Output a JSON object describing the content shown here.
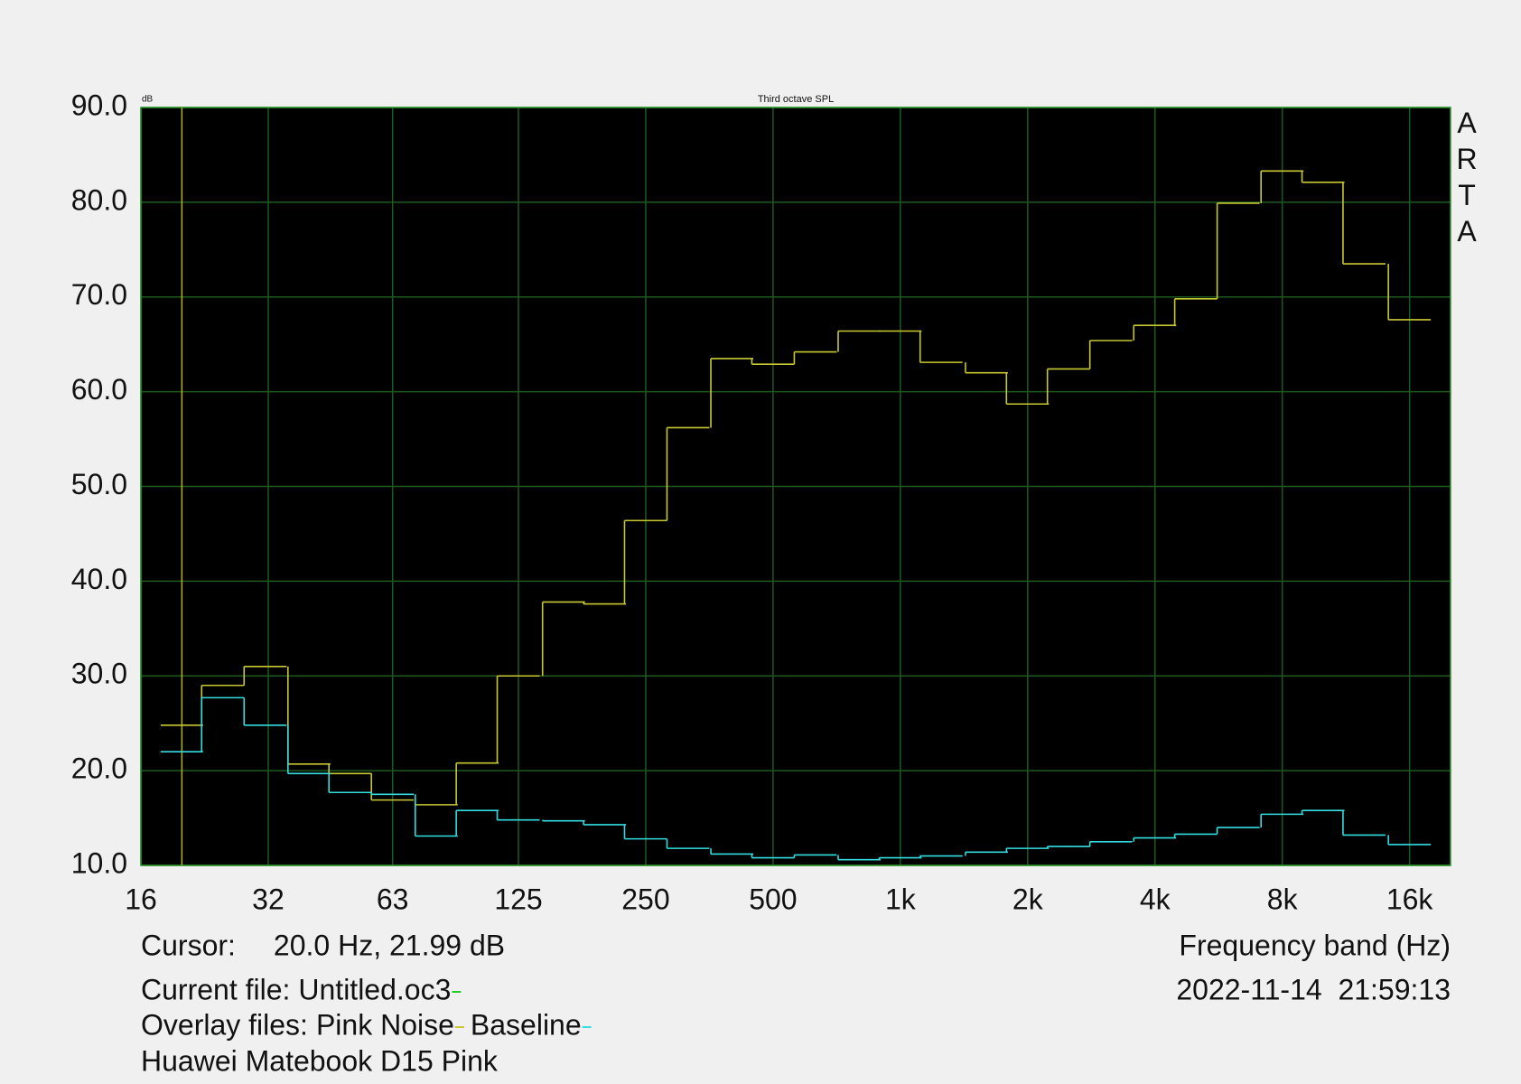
{
  "chart_data": {
    "type": "step",
    "title": "Third octave SPL",
    "y_unit": "dB",
    "watermark": "ARTA",
    "xlabel": "Frequency band (Hz)",
    "log_x": true,
    "grid": true,
    "background": "#000000",
    "grid_color": "#1e5a1e",
    "x": [
      20,
      25,
      31.5,
      40,
      50,
      63,
      80,
      100,
      125,
      160,
      200,
      250,
      315,
      400,
      500,
      630,
      800,
      1000,
      1250,
      1600,
      2000,
      2500,
      3150,
      4000,
      5000,
      6300,
      8000,
      10000,
      12500,
      16000
    ],
    "series": [
      {
        "name": "Pink Noise",
        "color": "#c8c832",
        "values": [
          24.8,
          29.0,
          31.0,
          20.7,
          19.7,
          16.9,
          16.4,
          20.8,
          30.0,
          37.8,
          37.6,
          46.4,
          56.2,
          63.5,
          62.9,
          64.2,
          66.4,
          66.4,
          63.1,
          62.0,
          58.7,
          62.4,
          65.4,
          67.0,
          69.8,
          79.9,
          83.3,
          82.1,
          73.5,
          67.6
        ]
      },
      {
        "name": "Baseline",
        "color": "#33dde0",
        "values": [
          22.0,
          27.7,
          24.8,
          19.7,
          17.7,
          17.5,
          13.1,
          15.8,
          14.8,
          14.7,
          14.3,
          12.8,
          11.8,
          11.2,
          10.8,
          11.1,
          10.6,
          10.8,
          11.0,
          11.4,
          11.8,
          12.0,
          12.5,
          12.9,
          13.3,
          14.0,
          15.4,
          15.8,
          13.2,
          12.2
        ]
      }
    ],
    "xlim": [
      16,
      20000
    ],
    "ylim": [
      10,
      90
    ],
    "xticks": [
      16,
      32,
      63,
      125,
      250,
      500,
      {
        "value": 1000,
        "label": "1k"
      },
      {
        "value": 2000,
        "label": "2k"
      },
      {
        "value": 4000,
        "label": "4k"
      },
      {
        "value": 8000,
        "label": "8k"
      },
      {
        "value": 16000,
        "label": "16k"
      }
    ],
    "yticks": [
      {
        "value": 10,
        "label": "10.0"
      },
      {
        "value": 20,
        "label": "20.0"
      },
      {
        "value": 30,
        "label": "30.0"
      },
      {
        "value": 40,
        "label": "40.0"
      },
      {
        "value": 50,
        "label": "50.0"
      },
      {
        "value": 60,
        "label": "60.0"
      },
      {
        "value": 70,
        "label": "70.0"
      },
      {
        "value": 80,
        "label": "80.0"
      },
      {
        "value": 90,
        "label": "90.0"
      }
    ],
    "cursor": {
      "x": 20,
      "color": "#b4b41e",
      "label": "Cursor:",
      "readout": "20.0 Hz, 21.99 dB"
    },
    "current_file": {
      "label": "Current file:",
      "name": "Untitled.oc3",
      "color": "#22cc22"
    },
    "overlay_label": "Overlay files:",
    "comment": "Huawei Matebook D15 Pink",
    "timestamp": "2022-11-14  21:59:13"
  }
}
